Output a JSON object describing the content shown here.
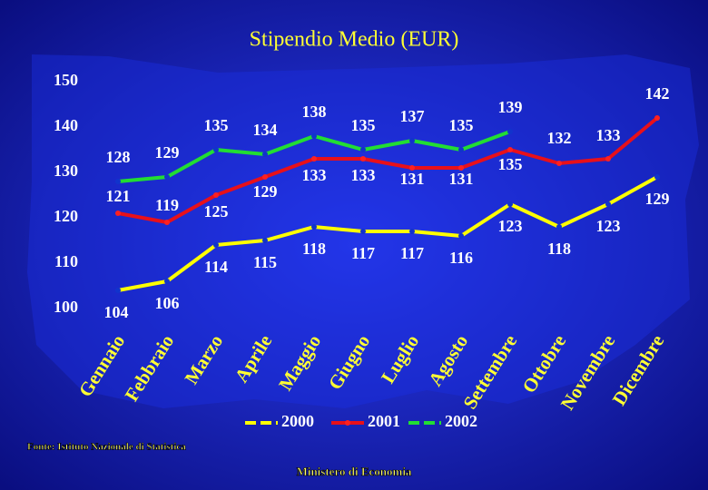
{
  "chart_data": {
    "type": "line",
    "title": "Stipendio Medio (EUR)",
    "categories": [
      "Gennaio",
      "Febbraio",
      "Marzo",
      "Aprile",
      "Maggio",
      "Giugno",
      "Luglio",
      "Agosto",
      "Settembre",
      "Ottobre",
      "Novembre",
      "Dicembre"
    ],
    "series": [
      {
        "name": "2000",
        "color": "#ffff00",
        "values": [
          104,
          106,
          114,
          115,
          118,
          117,
          117,
          116,
          123,
          118,
          123,
          129
        ]
      },
      {
        "name": "2001",
        "color": "#e8101a",
        "values": [
          121,
          119,
          125,
          129,
          133,
          133,
          131,
          131,
          135,
          132,
          133,
          142
        ]
      },
      {
        "name": "2002",
        "color": "#22dd33",
        "values": [
          128,
          129,
          135,
          134,
          138,
          135,
          137,
          135,
          139,
          null,
          null,
          null
        ]
      }
    ],
    "ylim": [
      100,
      150
    ],
    "yticks": [
      100,
      110,
      120,
      130,
      140,
      150
    ],
    "source": "Fonte: Istituto Nazionale di Statistica",
    "footer": "Ministero di Economia"
  }
}
